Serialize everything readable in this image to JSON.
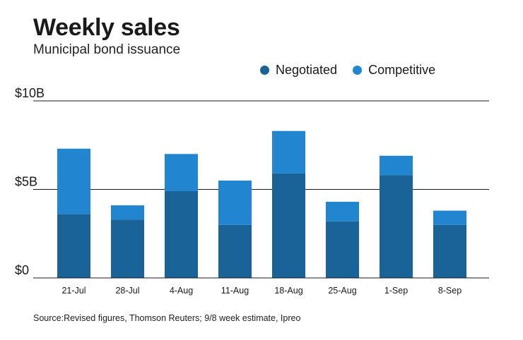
{
  "chart_data": {
    "type": "bar",
    "stacked": true,
    "title": "Weekly sales",
    "subtitle": "Municipal bond issuance",
    "categories": [
      "21-Jul",
      "28-Jul",
      "4-Aug",
      "11-Aug",
      "18-Aug",
      "25-Aug",
      "1-Sep",
      "8-Sep"
    ],
    "series": [
      {
        "name": "Negotiated",
        "color": "#1a6399",
        "values": [
          3.6,
          3.3,
          4.9,
          3.0,
          5.9,
          3.2,
          5.8,
          3.0
        ]
      },
      {
        "name": "Competitive",
        "color": "#2186cf",
        "values": [
          3.7,
          0.8,
          2.1,
          2.5,
          2.4,
          1.1,
          1.1,
          0.8
        ]
      }
    ],
    "ylim": [
      0,
      10
    ],
    "yticks": [
      0,
      5,
      10
    ],
    "ytick_labels": [
      "$0",
      "$5B",
      "$10B"
    ],
    "xlabel": "",
    "ylabel": "",
    "legend_position": "top-right",
    "source": "Source:Revised figures, Thomson Reuters; 9/8 week estimate, Ipreo"
  }
}
